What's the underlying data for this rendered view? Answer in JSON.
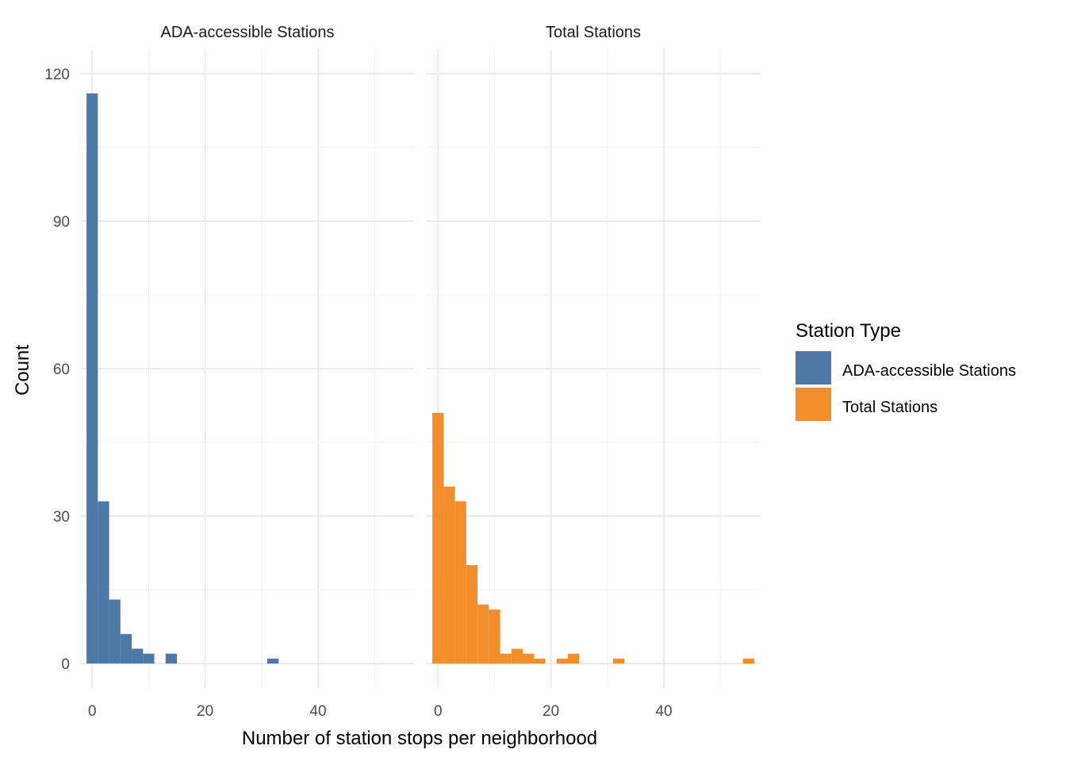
{
  "chart_data": {
    "type": "bar",
    "subtype": "faceted-histogram",
    "xlabel": "Number of station stops per neighborhood",
    "ylabel": "Count",
    "xlim": [
      -2,
      57
    ],
    "ylim": [
      -5,
      125
    ],
    "x_ticks": [
      0,
      20,
      40
    ],
    "x_minor_ticks": [
      10,
      30,
      50
    ],
    "y_ticks": [
      0,
      30,
      60,
      90,
      120
    ],
    "y_minor_ticks": [
      15,
      45,
      75,
      105
    ],
    "binwidth": 2,
    "grid": true,
    "legend": {
      "title": "Station Type",
      "placement": "right",
      "entries": [
        {
          "label": "ADA-accessible Stations",
          "color": "#4e79a7"
        },
        {
          "label": "Total Stations",
          "color": "#f28e2b"
        }
      ]
    },
    "facets": [
      {
        "label": "ADA-accessible Stations",
        "color": "#4e79a7",
        "bins": [
          {
            "x": 0,
            "count": 116
          },
          {
            "x": 2,
            "count": 33
          },
          {
            "x": 4,
            "count": 13
          },
          {
            "x": 6,
            "count": 6
          },
          {
            "x": 8,
            "count": 3
          },
          {
            "x": 10,
            "count": 2
          },
          {
            "x": 14,
            "count": 2
          },
          {
            "x": 32,
            "count": 1
          }
        ]
      },
      {
        "label": "Total Stations",
        "color": "#f28e2b",
        "bins": [
          {
            "x": 0,
            "count": 51
          },
          {
            "x": 2,
            "count": 36
          },
          {
            "x": 4,
            "count": 33
          },
          {
            "x": 6,
            "count": 20
          },
          {
            "x": 8,
            "count": 12
          },
          {
            "x": 10,
            "count": 11
          },
          {
            "x": 12,
            "count": 2
          },
          {
            "x": 14,
            "count": 3
          },
          {
            "x": 16,
            "count": 2
          },
          {
            "x": 18,
            "count": 1
          },
          {
            "x": 22,
            "count": 1
          },
          {
            "x": 24,
            "count": 2
          },
          {
            "x": 32,
            "count": 1
          },
          {
            "x": 55,
            "count": 1
          }
        ]
      }
    ]
  }
}
